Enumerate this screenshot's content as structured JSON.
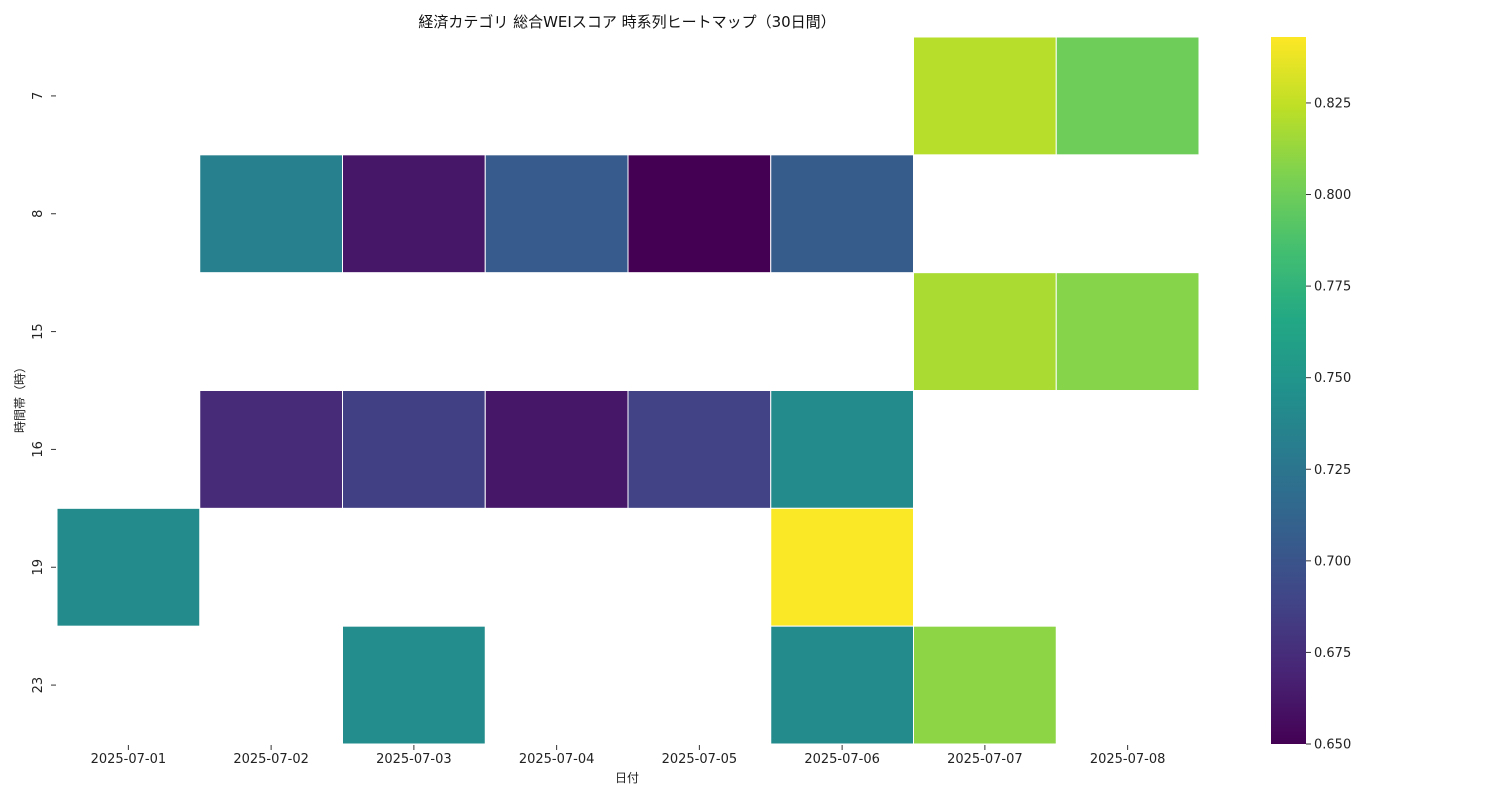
{
  "chart_data": {
    "type": "heatmap",
    "title": "経済カテゴリ 総合WEIスコア 時系列ヒートマップ（30日間）",
    "xlabel": "日付",
    "ylabel": "時間帯（時）",
    "x_categories": [
      "2025-07-01",
      "2025-07-02",
      "2025-07-03",
      "2025-07-04",
      "2025-07-05",
      "2025-07-06",
      "2025-07-07",
      "2025-07-08"
    ],
    "y_categories": [
      "7",
      "8",
      "15",
      "16",
      "19",
      "23"
    ],
    "values": [
      [
        null,
        null,
        null,
        null,
        null,
        null,
        0.822,
        0.8
      ],
      [
        null,
        0.733,
        0.662,
        0.705,
        0.65,
        0.706,
        null,
        null
      ],
      [
        null,
        null,
        null,
        null,
        null,
        null,
        0.818,
        0.808
      ],
      [
        null,
        0.673,
        0.686,
        0.662,
        0.688,
        0.742,
        null,
        null
      ],
      [
        0.742,
        null,
        null,
        null,
        null,
        0.842,
        null,
        null
      ],
      [
        null,
        null,
        0.743,
        null,
        null,
        0.742,
        0.81,
        null
      ]
    ],
    "colormap": "viridis",
    "colorbar": {
      "vmin": 0.65,
      "vmax": 0.843,
      "ticks": [
        "0.650",
        "0.675",
        "0.700",
        "0.725",
        "0.750",
        "0.775",
        "0.800",
        "0.825"
      ]
    },
    "grid": false,
    "cell_border_color": "#ffffff"
  }
}
